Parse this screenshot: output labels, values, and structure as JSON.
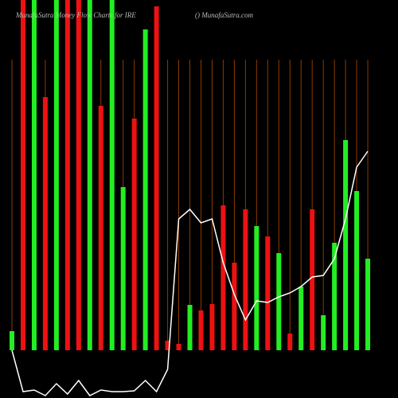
{
  "chart_data": {
    "type": "bar",
    "title": "MunafaSutra Money Flow Charts for IRE",
    "subtitle": "() MunafaSutra.com",
    "values": [
      24,
      450,
      450,
      318,
      450,
      450,
      450,
      450,
      307,
      450,
      205,
      291,
      403,
      432,
      12,
      8,
      57,
      50,
      58,
      182,
      110,
      177,
      156,
      143,
      122,
      21,
      80,
      177,
      44,
      135,
      264,
      200,
      115
    ],
    "colors": [
      "#22ee22",
      "#ee1111",
      "#22ee22",
      "#ee1111",
      "#22ee22",
      "#ee1111",
      "#ee1111",
      "#22ee22",
      "#ee1111",
      "#22ee22",
      "#22ee22",
      "#ee1111",
      "#22ee22",
      "#ee1111",
      "#ee1111",
      "#ee1111",
      "#22ee22",
      "#ee1111",
      "#ee1111",
      "#ee1111",
      "#ee1111",
      "#ee1111",
      "#22ee22",
      "#ee1111",
      "#22ee22",
      "#ee1111",
      "#22ee22",
      "#ee1111",
      "#22ee22",
      "#22ee22",
      "#22ee22",
      "#22ee22",
      "#22ee22"
    ],
    "ylim": [
      0,
      440
    ],
    "line": {
      "color": "#ffffff",
      "axis": "y2",
      "values": [
        60,
        8,
        10,
        3,
        18,
        5,
        22,
        3,
        10,
        8,
        8,
        9,
        22,
        8,
        36,
        225,
        237,
        220,
        225,
        170,
        130,
        98,
        122,
        120,
        127,
        132,
        140,
        152,
        154,
        175,
        225,
        290,
        310
      ]
    },
    "y2lim": [
      0,
      500
    ]
  }
}
